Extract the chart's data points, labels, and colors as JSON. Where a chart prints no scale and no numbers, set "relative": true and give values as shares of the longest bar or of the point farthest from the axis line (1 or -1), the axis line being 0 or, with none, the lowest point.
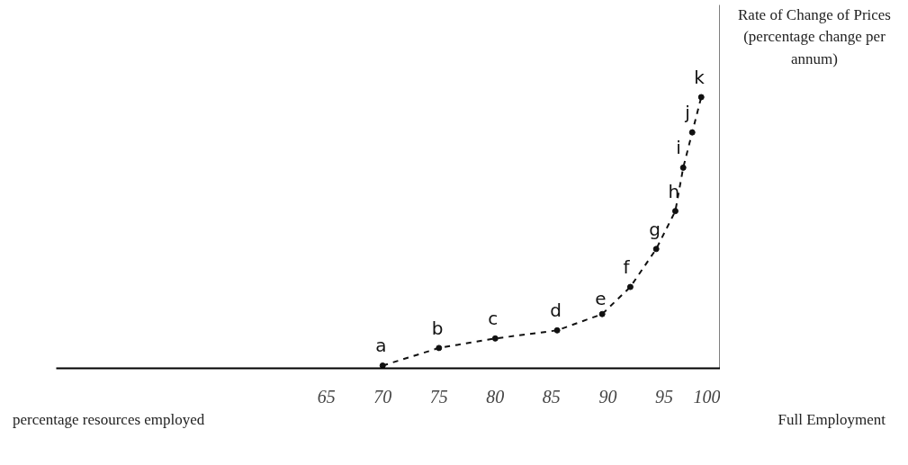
{
  "chart_data": {
    "type": "line",
    "relative": true,
    "xlabel": "percentage resources employed",
    "ylabel": "Rate of Change of Prices (percentage change per annum)",
    "x": [
      70,
      75,
      80,
      85.5,
      89.5,
      92,
      94.3,
      96,
      96.7,
      97.5,
      98.3
    ],
    "values": [
      0.01,
      0.075,
      0.11,
      0.14,
      0.2,
      0.3,
      0.44,
      0.58,
      0.74,
      0.87,
      1.0
    ],
    "color": "#111111",
    "marker": "circle",
    "line_style": "dashed",
    "grid": false,
    "xlim": [
      41,
      100
    ],
    "xticks": [
      65,
      70,
      75,
      80,
      85,
      90,
      95,
      100
    ],
    "annotations": [
      {
        "text": "a",
        "x": 70,
        "y": 0.01
      },
      {
        "text": "b",
        "x": 75,
        "y": 0.075
      },
      {
        "text": "c",
        "x": 80,
        "y": 0.11
      },
      {
        "text": "d",
        "x": 85.5,
        "y": 0.14
      },
      {
        "text": "e",
        "x": 89.5,
        "y": 0.2
      },
      {
        "text": "f",
        "x": 92,
        "y": 0.3
      },
      {
        "text": "g",
        "x": 94.3,
        "y": 0.44
      },
      {
        "text": "h",
        "x": 96,
        "y": 0.58
      },
      {
        "text": "i",
        "x": 96.7,
        "y": 0.74
      },
      {
        "text": "j",
        "x": 97.5,
        "y": 0.87
      },
      {
        "text": "k",
        "x": 98.3,
        "y": 1.0
      },
      "Full Employment"
    ]
  }
}
